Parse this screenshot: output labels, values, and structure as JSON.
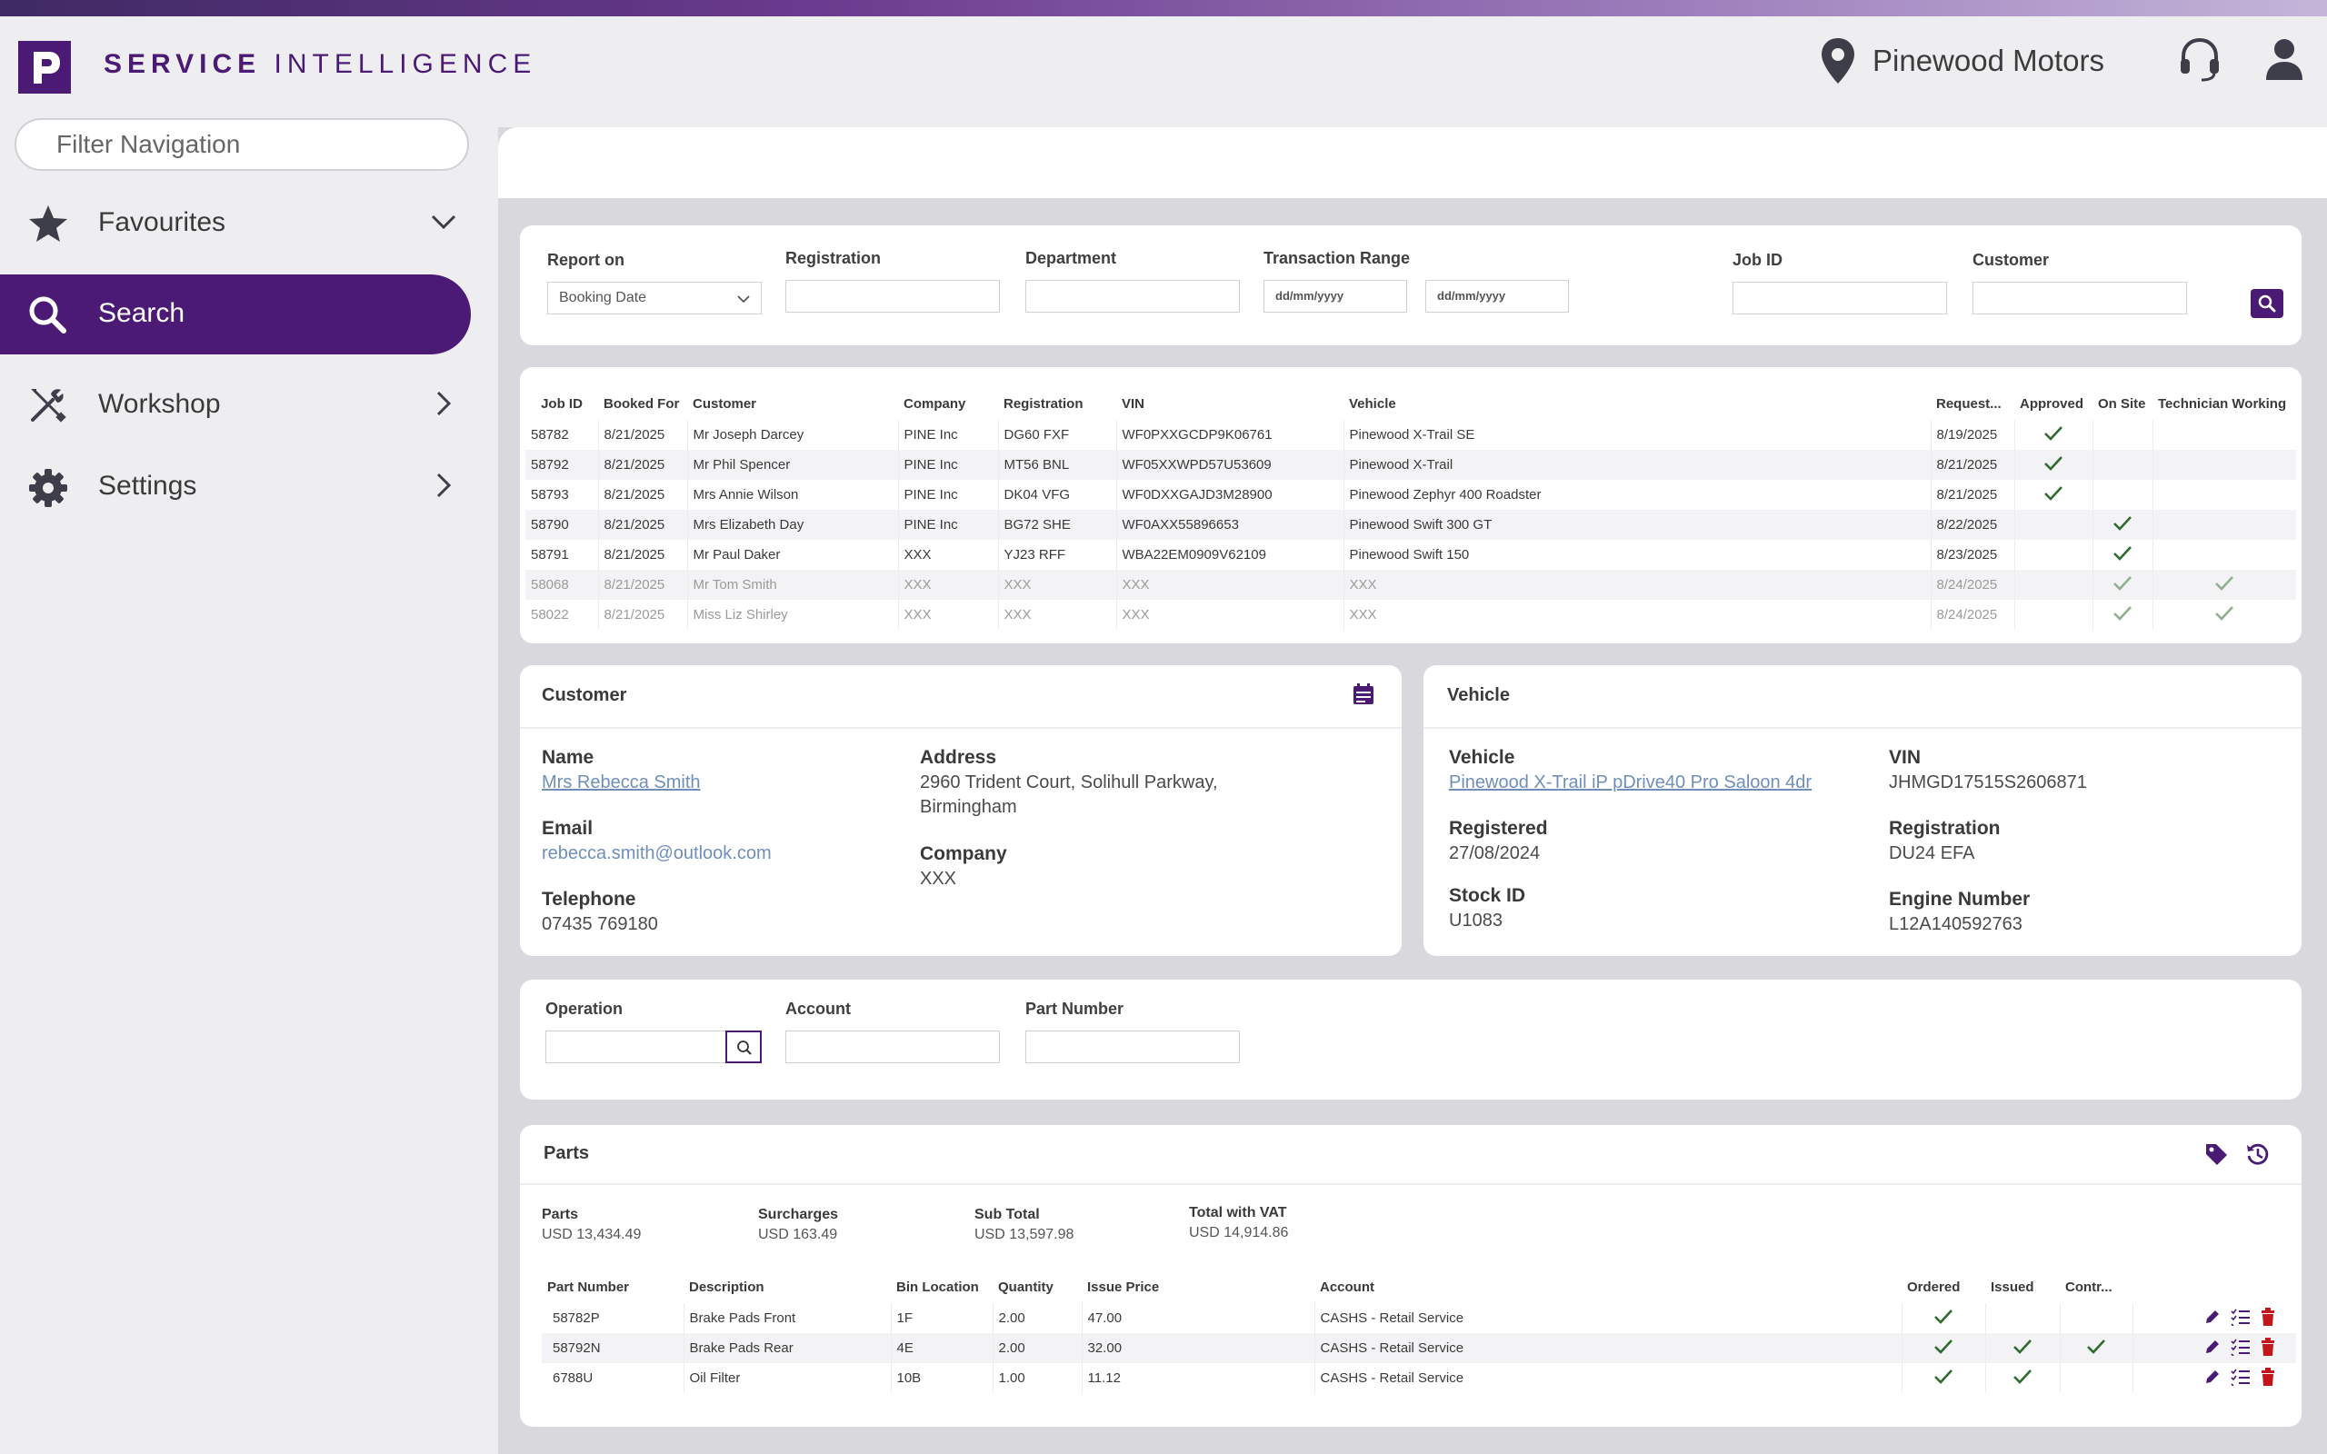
{
  "brand": {
    "logo_letter": "P",
    "name_bold": "SERVICE",
    "name_light": "INTELLIGENCE"
  },
  "header": {
    "dealer": "Pinewood Motors"
  },
  "sidebar": {
    "filter_placeholder": "Filter Navigation",
    "items": [
      {
        "label": "Favourites",
        "icon": "star-icon",
        "chevron": "down"
      },
      {
        "label": "Search",
        "icon": "search-icon",
        "active": true
      },
      {
        "label": "Workshop",
        "icon": "tools-icon",
        "chevron": "right"
      },
      {
        "label": "Settings",
        "icon": "gear-icon",
        "chevron": "right"
      }
    ]
  },
  "search_form": {
    "report_on_label": "Report on",
    "report_on_value": "Booking Date",
    "registration_label": "Registration",
    "department_label": "Department",
    "transaction_range_label": "Transaction Range",
    "date_from_placeholder": "dd/mm/yyyy",
    "date_to_placeholder": "dd/mm/yyyy",
    "job_id_label": "Job ID",
    "customer_label": "Customer"
  },
  "jobs_table": {
    "columns": [
      "Job ID",
      "Booked For",
      "Customer",
      "Company",
      "Registration",
      "VIN",
      "Vehicle",
      "Request...",
      "Approved",
      "On Site",
      "Technician Working"
    ],
    "rows": [
      {
        "job_id": "58782",
        "booked_for": "8/21/2025",
        "customer": "Mr Joseph Darcey",
        "company": "PINE Inc",
        "registration": "DG60 FXF",
        "vin": "WF0PXXGCDP9K06761",
        "vehicle": "Pinewood X-Trail SE",
        "requested": "8/19/2025",
        "approved": true,
        "on_site": false,
        "technician": false,
        "dim": false
      },
      {
        "job_id": "58792",
        "booked_for": "8/21/2025",
        "customer": "Mr Phil Spencer",
        "company": "PINE Inc",
        "registration": "MT56 BNL",
        "vin": "WF05XXWPD57U53609",
        "vehicle": "Pinewood X-Trail",
        "requested": "8/21/2025",
        "approved": true,
        "on_site": false,
        "technician": false,
        "dim": false
      },
      {
        "job_id": "58793",
        "booked_for": "8/21/2025",
        "customer": "Mrs Annie Wilson",
        "company": "PINE Inc",
        "registration": "DK04 VFG",
        "vin": "WF0DXXGAJD3M28900",
        "vehicle": "Pinewood Zephyr 400 Roadster",
        "requested": "8/21/2025",
        "approved": true,
        "on_site": false,
        "technician": false,
        "dim": false
      },
      {
        "job_id": "58790",
        "booked_for": "8/21/2025",
        "customer": "Mrs Elizabeth Day",
        "company": "PINE Inc",
        "registration": "BG72 SHE",
        "vin": "WF0AXX55896653",
        "vehicle": "Pinewood Swift 300 GT",
        "requested": "8/22/2025",
        "approved": false,
        "on_site": true,
        "technician": false,
        "dim": false
      },
      {
        "job_id": "58791",
        "booked_for": "8/21/2025",
        "customer": "Mr Paul Daker",
        "company": "XXX",
        "registration": "YJ23 RFF",
        "vin": "WBA22EM0909V62109",
        "vehicle": "Pinewood Swift 150",
        "requested": "8/23/2025",
        "approved": false,
        "on_site": true,
        "technician": false,
        "dim": false
      },
      {
        "job_id": "58068",
        "booked_for": "8/21/2025",
        "customer": "Mr Tom Smith",
        "company": "XXX",
        "registration": "XXX",
        "vin": "XXX",
        "vehicle": "XXX",
        "requested": "8/24/2025",
        "approved": false,
        "on_site": true,
        "technician": true,
        "dim": true
      },
      {
        "job_id": "58022",
        "booked_for": "8/21/2025",
        "customer": "Miss Liz Shirley",
        "company": "XXX",
        "registration": "XXX",
        "vin": "XXX",
        "vehicle": "XXX",
        "requested": "8/24/2025",
        "approved": false,
        "on_site": true,
        "technician": true,
        "dim": true
      }
    ]
  },
  "customer": {
    "title": "Customer",
    "name_label": "Name",
    "name": "Mrs Rebecca Smith",
    "email_label": "Email",
    "email": "rebecca.smith@outlook.com",
    "telephone_label": "Telephone",
    "telephone": "07435 769180",
    "address_label": "Address",
    "address_line1": "2960 Trident Court, Solihull Parkway,",
    "address_line2": "Birmingham",
    "company_label": "Company",
    "company": "XXX"
  },
  "vehicle": {
    "title": "Vehicle",
    "vehicle_label": "Vehicle",
    "vehicle": "Pinewood X-Trail iP pDrive40 Pro Saloon 4dr",
    "vin_label": "VIN",
    "vin": "JHMGD17515S2606871",
    "registered_label": "Registered",
    "registered": "27/08/2024",
    "registration_label": "Registration",
    "registration": "DU24 EFA",
    "stock_id_label": "Stock ID",
    "stock_id": "U1083",
    "engine_number_label": "Engine Number",
    "engine_number": "L12A140592763"
  },
  "operation_form": {
    "operation_label": "Operation",
    "account_label": "Account",
    "part_number_label": "Part Number"
  },
  "parts": {
    "title": "Parts",
    "totals": [
      {
        "label": "Parts",
        "value": "USD 13,434.49"
      },
      {
        "label": "Surcharges",
        "value": "USD 163.49"
      },
      {
        "label": "Sub Total",
        "value": "USD 13,597.98"
      },
      {
        "label": "Total with VAT",
        "value": "USD 14,914.86"
      }
    ],
    "columns": [
      "Part Number",
      "Description",
      "Bin Location",
      "Quantity",
      "Issue Price",
      "Account",
      "Ordered",
      "Issued",
      "Contr..."
    ],
    "rows": [
      {
        "part_number": "58782P",
        "description": "Brake Pads Front",
        "bin": "1F",
        "quantity": "2.00",
        "price": "47.00",
        "account": "CASHS - Retail Service",
        "ordered": true,
        "issued": false,
        "contr": false
      },
      {
        "part_number": "58792N",
        "description": "Brake Pads Rear",
        "bin": "4E",
        "quantity": "2.00",
        "price": "32.00",
        "account": "CASHS - Retail Service",
        "ordered": true,
        "issued": true,
        "contr": true
      },
      {
        "part_number": "6788U",
        "description": "Oil Filter",
        "bin": "10B",
        "quantity": "1.00",
        "price": "11.12",
        "account": "CASHS - Retail Service",
        "ordered": true,
        "issued": true,
        "contr": false
      }
    ]
  },
  "colors": {
    "brand": "#4b1a74",
    "check": "#2e6b2e",
    "link": "#6f8fb9",
    "delete": "#c0161c"
  }
}
